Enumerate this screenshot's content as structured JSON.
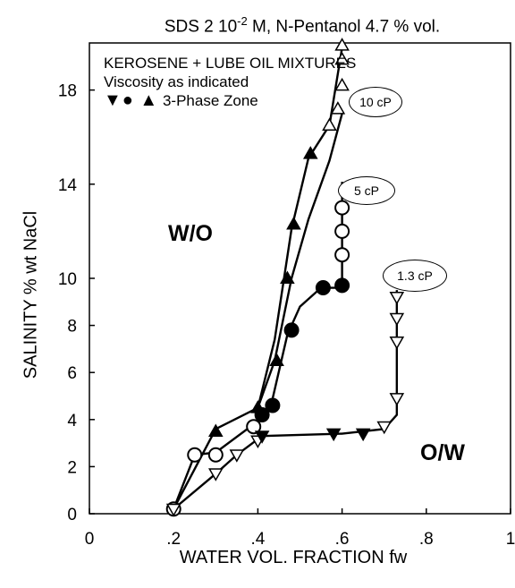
{
  "chart_data": {
    "type": "line",
    "title_main": "SDS  2 10",
    "title_exp": "-2",
    "title_rest": " M, N-Pentanol  4.7 % vol.",
    "xlabel": "WATER VOL. FRACTION  fw",
    "ylabel": "SALINITY  %  wt  NaCl",
    "xlim": [
      0,
      1
    ],
    "ylim": [
      0,
      20
    ],
    "x_ticks": [
      {
        "value": 0,
        "label": "0"
      },
      {
        "value": 0.2,
        "label": ".2"
      },
      {
        "value": 0.4,
        "label": ".4"
      },
      {
        "value": 0.6,
        "label": ".6"
      },
      {
        "value": 0.8,
        "label": ".8"
      },
      {
        "value": 1,
        "label": "1"
      }
    ],
    "y_ticks": [
      {
        "value": 0,
        "label": "0"
      },
      {
        "value": 2,
        "label": "2"
      },
      {
        "value": 4,
        "label": "4"
      },
      {
        "value": 6,
        "label": "6"
      },
      {
        "value": 8,
        "label": "8"
      },
      {
        "value": 10,
        "label": "10"
      },
      {
        "value": 14,
        "label": "14"
      },
      {
        "value": 18,
        "label": "18"
      }
    ],
    "legend": {
      "line1": "KEROSENE + LUBE OIL MIXTURES",
      "line2": "Viscosity as indicated",
      "line3_symbols": "▼● ▲",
      "line3_text": "3-Phase Zone"
    },
    "regions": {
      "wo": "W/O",
      "ow": "O/W"
    },
    "series": [
      {
        "name": "10 cP",
        "marker": "triangle-up",
        "x": [
          0.2,
          0.3,
          0.4,
          0.44,
          0.48,
          0.52,
          0.57,
          0.6
        ],
        "y_upper": [
          0.2,
          3.6,
          4.5,
          7.4,
          12.1,
          15.1,
          16.5,
          19.8
        ],
        "y_lower": [
          0.2,
          3.6,
          4.5,
          6.5,
          10.0,
          12.5,
          15.0,
          17.0
        ],
        "three_phase_start_index": 2,
        "open_points": [
          [
            0.57,
            16.5
          ],
          [
            0.59,
            17.2
          ],
          [
            0.6,
            18.2
          ],
          [
            0.6,
            19.3
          ],
          [
            0.6,
            19.9
          ]
        ],
        "filled_points": [
          [
            0.3,
            3.5
          ],
          [
            0.4,
            4.5
          ],
          [
            0.445,
            6.5
          ],
          [
            0.47,
            10.0
          ],
          [
            0.485,
            12.3
          ],
          [
            0.525,
            15.3
          ]
        ]
      },
      {
        "name": "5 cP",
        "marker": "circle",
        "curve": [
          [
            0.2,
            0.2
          ],
          [
            0.25,
            2.5
          ],
          [
            0.3,
            2.6
          ],
          [
            0.39,
            3.8
          ],
          [
            0.43,
            4.5
          ],
          [
            0.47,
            7.6
          ],
          [
            0.5,
            8.8
          ],
          [
            0.55,
            9.6
          ],
          [
            0.6,
            9.6
          ]
        ],
        "open_points": [
          [
            0.2,
            0.2
          ],
          [
            0.25,
            2.5
          ],
          [
            0.3,
            2.5
          ],
          [
            0.39,
            3.7
          ],
          [
            0.6,
            11.0
          ],
          [
            0.6,
            12.0
          ],
          [
            0.6,
            13.0
          ]
        ],
        "filled_points": [
          [
            0.41,
            4.2
          ],
          [
            0.435,
            4.6
          ],
          [
            0.48,
            7.8
          ],
          [
            0.555,
            9.6
          ],
          [
            0.6,
            9.7
          ]
        ],
        "vertical_to": [
          0.6,
          14.1
        ]
      },
      {
        "name": "1.3 cP",
        "marker": "triangle-down",
        "curve": [
          [
            0.2,
            0.2
          ],
          [
            0.3,
            1.7
          ],
          [
            0.35,
            2.5
          ],
          [
            0.41,
            3.3
          ],
          [
            0.6,
            3.4
          ],
          [
            0.7,
            3.6
          ],
          [
            0.73,
            4.2
          ],
          [
            0.73,
            9.5
          ]
        ],
        "open_points": [
          [
            0.2,
            0.2
          ],
          [
            0.3,
            1.7
          ],
          [
            0.35,
            2.5
          ],
          [
            0.4,
            3.1
          ],
          [
            0.7,
            3.7
          ],
          [
            0.73,
            4.9
          ],
          [
            0.73,
            7.3
          ],
          [
            0.73,
            8.3
          ],
          [
            0.73,
            9.2
          ]
        ],
        "filled_points": [
          [
            0.41,
            3.3
          ],
          [
            0.58,
            3.4
          ],
          [
            0.65,
            3.4
          ]
        ]
      }
    ],
    "callouts": [
      {
        "label": "10 cP"
      },
      {
        "label": "5 cP"
      },
      {
        "label": "1.3 cP"
      }
    ]
  }
}
